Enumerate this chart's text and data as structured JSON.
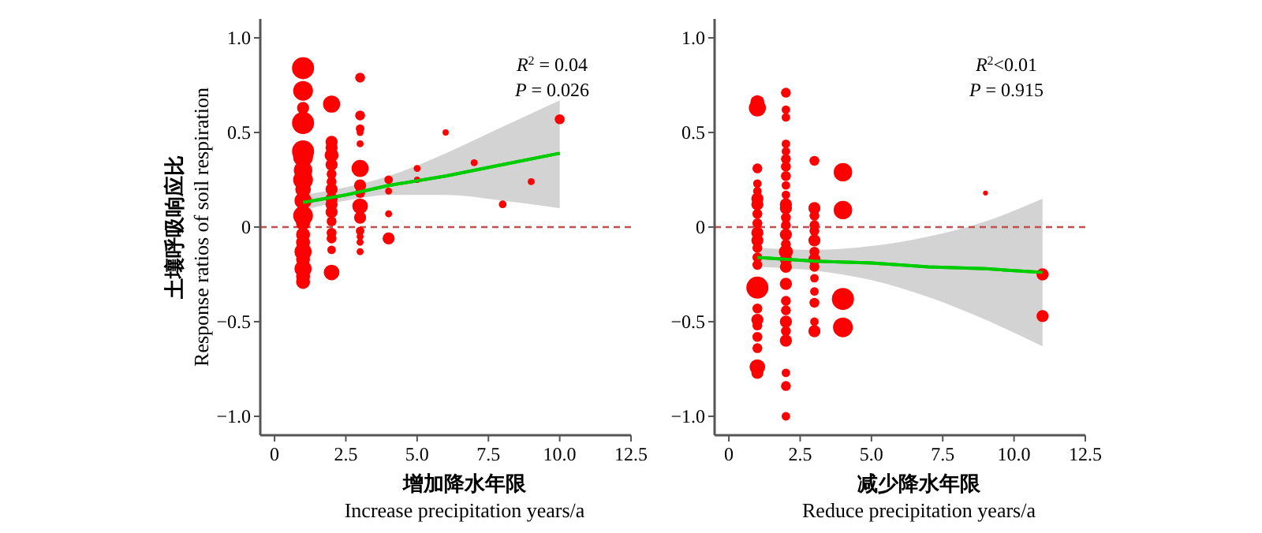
{
  "chart_data": [
    {
      "type": "bubble",
      "xlabel": "增加降水年限\nIncrease precipitation years/a",
      "ylabel": "土壤呼吸响应比\nResponse ratios of soil respiration",
      "annotations": [
        "R$^{2}$ = 0.04",
        "P = 0.026"
      ],
      "xlim": [
        -0.5,
        12.5
      ],
      "ylim": [
        -1.1,
        1.1
      ],
      "xticks": [
        {
          "value": 0,
          "label": "0"
        },
        {
          "value": 2.5,
          "label": "2.5"
        },
        {
          "value": 5,
          "label": "5.0"
        },
        {
          "value": 7.5,
          "label": "7.5"
        },
        {
          "value": 10,
          "label": "10.0"
        },
        {
          "value": 12.5,
          "label": "12.5"
        }
      ],
      "yticks": [
        {
          "value": -1,
          "label": "−1.0"
        },
        {
          "value": -0.5,
          "label": "−0.5"
        },
        {
          "value": 0,
          "label": "0"
        },
        {
          "value": 0.5,
          "label": "0.5"
        },
        {
          "value": 1,
          "label": "1.0"
        }
      ],
      "ref_lines": [
        {
          "axis": "y",
          "value": 0,
          "color": "#c0504d",
          "line_style": "dashed"
        }
      ],
      "grid": false,
      "series": [
        {
          "type": "bubble",
          "color": "#ff0000",
          "x": [
            1,
            1,
            1,
            1,
            1,
            1,
            1,
            1,
            1,
            1,
            1,
            1,
            1,
            1,
            1,
            1,
            1,
            1,
            1,
            2,
            2,
            2,
            2,
            2,
            2,
            2,
            2,
            2,
            2,
            2,
            2,
            2,
            2,
            2,
            2,
            3,
            3,
            3,
            3,
            3,
            3,
            3,
            3,
            3,
            3,
            3,
            3,
            3,
            3,
            4,
            4,
            4,
            4,
            5,
            5,
            6,
            7,
            8,
            9,
            10
          ],
          "values": [
            0.84,
            0.72,
            0.63,
            0.55,
            0.4,
            0.37,
            0.3,
            0.25,
            0.2,
            0.14,
            0.06,
            0.02,
            -0.04,
            -0.08,
            -0.13,
            -0.17,
            -0.22,
            -0.26,
            -0.29,
            0.65,
            0.45,
            0.42,
            0.38,
            0.33,
            0.28,
            0.24,
            0.2,
            0.15,
            0.12,
            0.08,
            0.03,
            -0.03,
            -0.06,
            -0.12,
            -0.24,
            0.79,
            0.59,
            0.52,
            0.5,
            0.44,
            0.31,
            0.22,
            0.18,
            0.11,
            0.05,
            -0.02,
            -0.05,
            -0.08,
            -0.13,
            0.25,
            0.19,
            0.07,
            -0.06,
            0.31,
            0.25,
            0.5,
            0.34,
            0.12,
            0.24,
            0.57
          ],
          "sizes": [
            1,
            0.8,
            0.3,
            1,
            1,
            0.8,
            0.7,
            0.8,
            0.5,
            0.6,
            0.8,
            0.4,
            0.4,
            0.4,
            0.6,
            0.4,
            0.6,
            0.4,
            0.4,
            0.6,
            0.3,
            0.3,
            0.4,
            0.3,
            0.2,
            0.2,
            0.3,
            0.3,
            0.3,
            0.3,
            0.2,
            0.2,
            0.2,
            0.15,
            0.5,
            0.2,
            0.2,
            0.15,
            0.1,
            0.1,
            0.6,
            0.3,
            0.2,
            0.5,
            0.3,
            0.15,
            0.1,
            0.1,
            0.1,
            0.15,
            0.1,
            0.1,
            0.3,
            0.1,
            0.08,
            0.08,
            0.1,
            0.12,
            0.1,
            0.2
          ]
        },
        {
          "type": "line",
          "color": "#00cc00",
          "x": [
            1,
            2.5,
            4,
            6,
            8,
            10
          ],
          "values": [
            0.13,
            0.17,
            0.22,
            0.27,
            0.33,
            0.39
          ],
          "lower": [
            0.09,
            0.14,
            0.17,
            0.17,
            0.14,
            0.1
          ],
          "upper": [
            0.17,
            0.21,
            0.27,
            0.39,
            0.53,
            0.67
          ]
        }
      ]
    },
    {
      "type": "bubble",
      "xlabel": "减少降水年限\nReduce precipitation years/a",
      "annotations": [
        "R$^{2}$<0.01",
        "P = 0.915"
      ],
      "xlim": [
        -0.5,
        12.5
      ],
      "ylim": [
        -1.1,
        1.1
      ],
      "xticks": [
        {
          "value": 0,
          "label": "0"
        },
        {
          "value": 2.5,
          "label": "2.5"
        },
        {
          "value": 5,
          "label": "5.0"
        },
        {
          "value": 7.5,
          "label": "7.5"
        },
        {
          "value": 10,
          "label": "10.0"
        },
        {
          "value": 12.5,
          "label": "12.5"
        }
      ],
      "yticks": [
        {
          "value": -1,
          "label": "−1.0"
        },
        {
          "value": -0.5,
          "label": "−0.5"
        },
        {
          "value": 0,
          "label": "0"
        },
        {
          "value": 0.5,
          "label": "0.5"
        },
        {
          "value": 1,
          "label": "1.0"
        }
      ],
      "ref_lines": [
        {
          "axis": "y",
          "value": 0,
          "color": "#c0504d",
          "line_style": "dashed"
        }
      ],
      "grid": false,
      "series": [
        {
          "type": "bubble",
          "color": "#ff0000",
          "x": [
            1,
            1,
            1,
            1,
            1,
            1,
            1,
            1,
            1,
            1,
            1,
            1,
            1,
            1,
            1,
            1,
            1,
            1,
            1,
            1,
            1,
            1,
            2,
            2,
            2,
            2,
            2,
            2,
            2,
            2,
            2,
            2,
            2,
            2,
            2,
            2,
            2,
            2,
            2,
            2,
            2,
            2,
            2,
            2,
            2,
            2,
            2,
            2,
            2,
            2,
            3,
            3,
            3,
            3,
            3,
            3,
            3,
            3,
            3,
            3,
            3,
            3,
            3,
            3,
            4,
            4,
            4,
            4,
            9,
            11,
            11
          ],
          "values": [
            0.66,
            0.63,
            0.31,
            0.23,
            0.19,
            0.15,
            0.12,
            0.07,
            0.02,
            -0.03,
            -0.07,
            -0.11,
            -0.16,
            -0.2,
            -0.32,
            -0.43,
            -0.49,
            -0.52,
            -0.58,
            -0.64,
            -0.74,
            -0.77,
            0.71,
            0.62,
            0.58,
            0.44,
            0.4,
            0.36,
            0.32,
            0.27,
            0.22,
            0.17,
            0.12,
            0.1,
            0.05,
            0.01,
            -0.04,
            -0.09,
            -0.13,
            -0.17,
            -0.21,
            -0.3,
            -0.39,
            -0.44,
            -0.5,
            -0.55,
            -0.6,
            -0.77,
            -0.84,
            -1,
            0.35,
            0.1,
            0.06,
            0.01,
            -0.02,
            -0.07,
            -0.13,
            -0.17,
            -0.21,
            -0.27,
            -0.34,
            -0.4,
            -0.5,
            -0.55,
            0.29,
            0.09,
            -0.38,
            -0.53,
            0.18,
            -0.25,
            -0.47
          ],
          "sizes": [
            0.4,
            0.6,
            0.2,
            0.15,
            0.15,
            0.3,
            0.3,
            0.2,
            0.2,
            0.3,
            0.3,
            0.2,
            0.2,
            0.2,
            1,
            0.2,
            0.3,
            0.2,
            0.2,
            0.2,
            0.5,
            0.3,
            0.2,
            0.15,
            0.15,
            0.15,
            0.15,
            0.2,
            0.2,
            0.2,
            0.15,
            0.15,
            0.3,
            0.3,
            0.2,
            0.2,
            0.3,
            0.2,
            0.4,
            0.3,
            0.3,
            0.3,
            0.2,
            0.2,
            0.3,
            0.2,
            0.3,
            0.15,
            0.2,
            0.15,
            0.2,
            0.3,
            0.2,
            0.2,
            0.2,
            0.3,
            0.2,
            0.3,
            0.2,
            0.15,
            0.15,
            0.2,
            0.15,
            0.3,
            0.7,
            0.7,
            1,
            0.8,
            0.05,
            0.3,
            0.3
          ]
        },
        {
          "type": "line",
          "color": "#00cc00",
          "x": [
            1,
            3,
            5,
            7,
            9,
            11
          ],
          "values": [
            -0.16,
            -0.18,
            -0.19,
            -0.21,
            -0.22,
            -0.24
          ],
          "lower": [
            -0.21,
            -0.23,
            -0.28,
            -0.37,
            -0.49,
            -0.63
          ],
          "upper": [
            -0.11,
            -0.12,
            -0.1,
            -0.05,
            0.03,
            0.15
          ]
        }
      ]
    }
  ]
}
